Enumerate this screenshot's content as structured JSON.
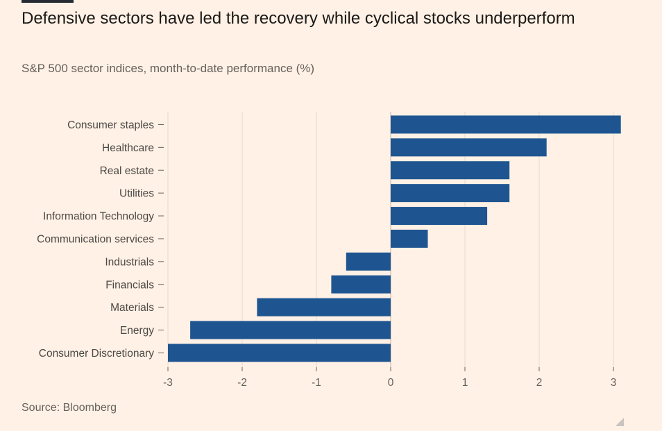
{
  "title": "Defensive sectors have led the recovery while cyclical stocks underperform",
  "subtitle": "S&P 500 sector indices, month-to-date performance (%)",
  "source": "Source: Bloomberg",
  "colors": {
    "background": "#fff1e5",
    "bar": "#1e5591",
    "grid": "#e6d9ce",
    "text": "#1a1817",
    "muted": "#66605c"
  },
  "chart_data": {
    "type": "bar",
    "orientation": "horizontal",
    "categories": [
      "Consumer staples",
      "Healthcare",
      "Real estate",
      "Utilities",
      "Information Technology",
      "Communication services",
      "Industrials",
      "Financials",
      "Materials",
      "Energy",
      "Consumer Discretionary"
    ],
    "values": [
      3.1,
      2.1,
      1.6,
      1.6,
      1.3,
      0.5,
      -0.6,
      -0.8,
      -1.8,
      -2.7,
      -3.0
    ],
    "xlim": [
      -3,
      3
    ],
    "xticks": [
      -3,
      -2,
      -1,
      0,
      1,
      2,
      3
    ],
    "xtick_labels": [
      "-3",
      "-2",
      "-1",
      "0",
      "1",
      "2",
      "3"
    ],
    "xlabel": "",
    "ylabel": "",
    "grid": "vertical",
    "legend": "none"
  }
}
